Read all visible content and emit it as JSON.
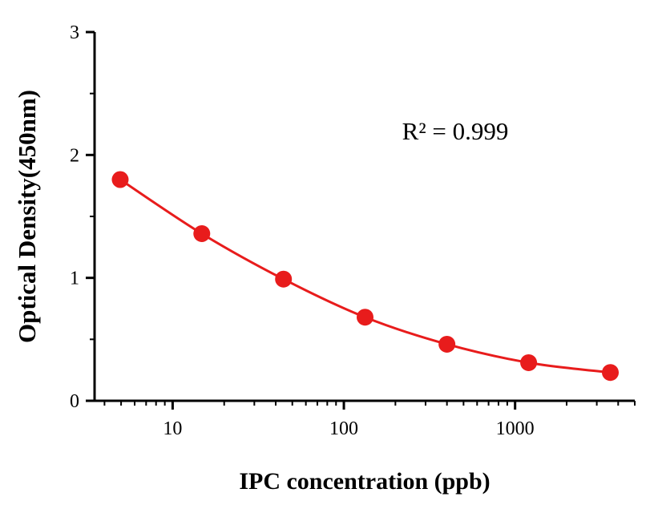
{
  "chart_data": {
    "type": "scatter",
    "title": "",
    "xlabel": "IPC concentration (ppb)",
    "ylabel": "Optical Density(450nm)",
    "annotation": "R² = 0.999",
    "x_scale": "log",
    "xlim": [
      3.5,
      5000
    ],
    "ylim": [
      0,
      3
    ],
    "x": [
      4.94,
      14.8,
      44.4,
      133,
      400,
      1200,
      3600
    ],
    "y": [
      1.8,
      1.36,
      0.99,
      0.68,
      0.46,
      0.31,
      0.23
    ],
    "x_major_ticks": [
      10,
      100,
      1000
    ],
    "x_major_tick_labels": [
      "10",
      "100",
      "1000"
    ],
    "x_minor_ticks": [
      4,
      5,
      6,
      7,
      8,
      9,
      20,
      30,
      40,
      50,
      60,
      70,
      80,
      90,
      200,
      300,
      400,
      500,
      600,
      700,
      800,
      900,
      2000,
      3000,
      4000,
      5000
    ],
    "y_major_ticks": [
      0,
      1,
      2,
      3
    ],
    "y_major_tick_labels": [
      "0",
      "1",
      "2",
      "3"
    ],
    "y_minor_ticks": [
      0.5,
      1.5,
      2.5
    ],
    "grid": false,
    "legend": false,
    "series_color": "#e81c1c",
    "axis_color": "#000000",
    "marker": "circle",
    "line": "smooth"
  }
}
